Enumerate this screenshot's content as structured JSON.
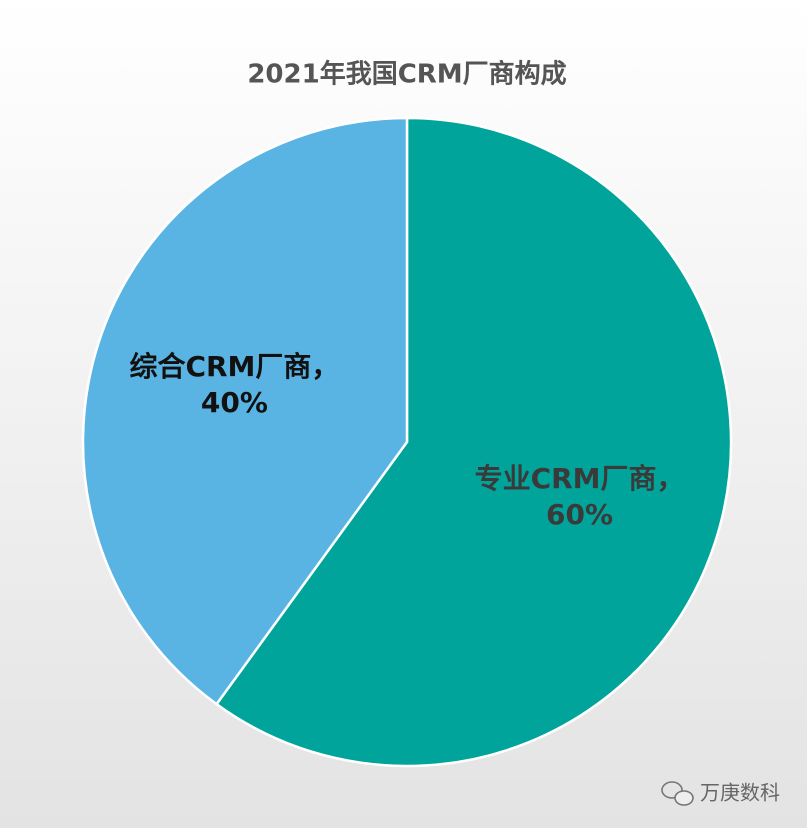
{
  "chart_data": {
    "type": "pie",
    "title": "2021年我国CRM厂商构成",
    "categories": [
      "专业CRM厂商，",
      "综合CRM厂商，"
    ],
    "values": [
      60,
      40
    ],
    "value_labels": [
      "60%",
      "40%"
    ],
    "colors": [
      "#00a49a",
      "#5ab4e3"
    ],
    "label_colors": [
      "#3a3a3a",
      "#111111"
    ]
  },
  "watermark": "万庚数科"
}
